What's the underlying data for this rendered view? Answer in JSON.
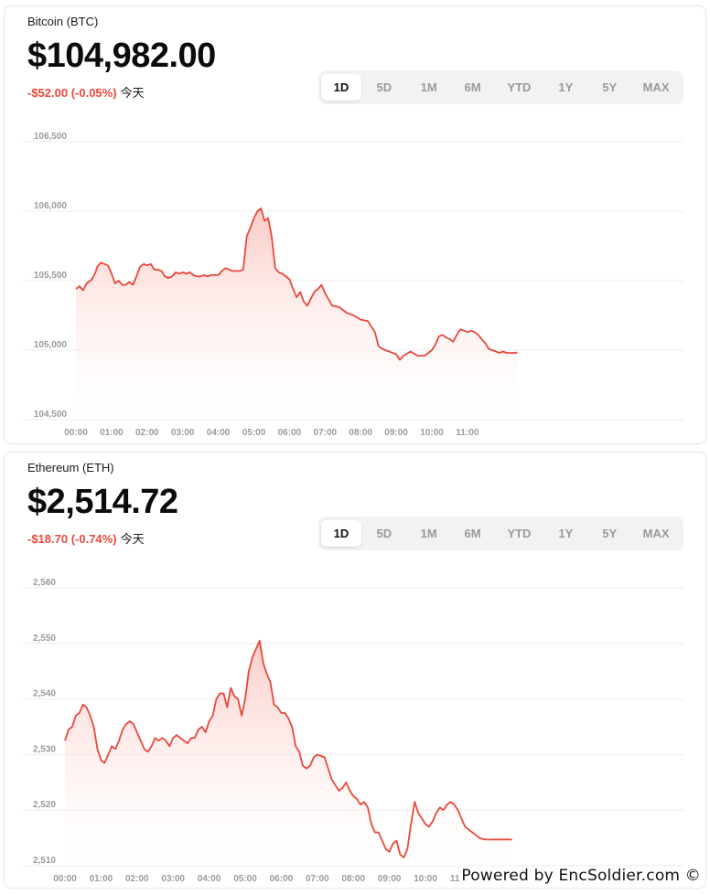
{
  "cards": [
    {
      "id": "btc",
      "asset_name": "Bitcoin (BTC)",
      "price": "$104,982.00",
      "change": "-$52.00 (-0.05%)",
      "period_label": "今天",
      "ranges": [
        "1D",
        "5D",
        "1M",
        "6M",
        "YTD",
        "1Y",
        "5Y",
        "MAX"
      ],
      "active_range": "1D",
      "colors": {
        "line": "#e8483b",
        "fill_top": "#fbc9c3",
        "grid": "#ececec"
      },
      "chart_data": {
        "type": "area",
        "y_ticks": [
          "106,500",
          "106,000",
          "105,500",
          "105,000",
          "104,500"
        ],
        "ylim": [
          104500,
          106500
        ],
        "x_ticks": [
          "00:00",
          "01:00",
          "02:00",
          "03:00",
          "04:00",
          "05:00",
          "06:00",
          "07:00",
          "08:00",
          "09:00",
          "10:00",
          "11:00"
        ],
        "x_unit": "hours since 00:00",
        "series": [
          {
            "x": [
              0,
              0.1,
              0.2,
              0.3,
              0.45,
              0.55,
              0.6,
              0.7,
              0.8,
              0.9,
              1.0,
              1.1,
              1.2,
              1.3,
              1.4,
              1.5,
              1.6,
              1.7,
              1.8,
              1.9,
              2.0,
              2.1,
              2.2,
              2.3,
              2.4,
              2.5,
              2.6,
              2.7,
              2.8,
              2.9,
              3.0,
              3.1,
              3.2,
              3.3,
              3.4,
              3.5,
              3.6,
              3.7,
              3.8,
              3.9,
              4.0,
              4.1,
              4.2,
              4.3,
              4.4,
              4.5,
              4.6,
              4.7,
              4.8,
              4.9,
              5.0,
              5.1,
              5.2,
              5.3,
              5.4,
              5.5,
              5.6,
              5.7,
              5.8,
              5.9,
              6.0,
              6.1,
              6.2,
              6.3,
              6.4,
              6.5,
              6.6,
              6.7,
              6.8,
              6.9,
              7.0,
              7.2,
              7.4,
              7.6,
              7.8,
              8.0,
              8.2,
              8.4,
              8.5,
              8.6,
              8.8,
              9.0,
              9.1,
              9.2,
              9.4,
              9.6,
              9.8,
              10.0,
              10.1,
              10.2,
              10.3,
              10.4,
              10.5,
              10.6,
              10.7,
              10.8,
              10.9,
              11.0,
              11.1,
              11.2,
              11.3,
              11.5,
              11.6,
              11.7,
              11.8,
              11.9,
              12.0,
              12.1,
              12.2,
              12.3,
              12.4
            ],
            "y": [
              105440,
              105460,
              105430,
              105480,
              105510,
              105560,
              105600,
              105630,
              105620,
              105610,
              105550,
              105480,
              105500,
              105470,
              105470,
              105490,
              105470,
              105530,
              105600,
              105620,
              105610,
              105620,
              105580,
              105580,
              105570,
              105530,
              105520,
              105530,
              105560,
              105550,
              105560,
              105550,
              105560,
              105540,
              105530,
              105530,
              105540,
              105530,
              105540,
              105540,
              105540,
              105570,
              105590,
              105580,
              105570,
              105570,
              105570,
              105580,
              105820,
              105880,
              105950,
              106000,
              106020,
              105930,
              105950,
              105820,
              105590,
              105560,
              105550,
              105530,
              105510,
              105440,
              105380,
              105420,
              105350,
              105320,
              105370,
              105420,
              105440,
              105470,
              105410,
              105320,
              105310,
              105270,
              105250,
              105220,
              105210,
              105130,
              105030,
              105010,
              104990,
              104970,
              104930,
              104960,
              104990,
              104960,
              104960,
              105000,
              105040,
              105100,
              105110,
              105090,
              105080,
              105060,
              105110,
              105150,
              105140,
              105130,
              105140,
              105130,
              105110,
              105050,
              105010,
              105000,
              104990,
              104980,
              104990,
              104980,
              104980,
              104980,
              104982
            ]
          }
        ]
      }
    },
    {
      "id": "eth",
      "asset_name": "Ethereum (ETH)",
      "price": "$2,514.72",
      "change": "-$18.70 (-0.74%)",
      "period_label": "今天",
      "ranges": [
        "1D",
        "5D",
        "1M",
        "6M",
        "YTD",
        "1Y",
        "5Y",
        "MAX"
      ],
      "active_range": "1D",
      "colors": {
        "line": "#e8483b",
        "fill_top": "#fbc9c3",
        "grid": "#ececec"
      },
      "chart_data": {
        "type": "area",
        "y_ticks": [
          "2,560",
          "2,550",
          "2,540",
          "2,530",
          "2,520",
          "2,510"
        ],
        "ylim": [
          2510,
          2560
        ],
        "x_ticks": [
          "00:00",
          "01:00",
          "02:00",
          "03:00",
          "04:00",
          "05:00",
          "06:00",
          "07:00",
          "08:00",
          "09:00",
          "10:00",
          "11:00"
        ],
        "x_unit": "hours since 00:00",
        "series": [
          {
            "x": [
              0,
              0.1,
              0.2,
              0.3,
              0.4,
              0.5,
              0.6,
              0.7,
              0.8,
              0.9,
              1.0,
              1.1,
              1.2,
              1.3,
              1.4,
              1.5,
              1.6,
              1.7,
              1.8,
              1.9,
              2.0,
              2.1,
              2.2,
              2.3,
              2.4,
              2.5,
              2.6,
              2.7,
              2.8,
              2.9,
              3.0,
              3.1,
              3.2,
              3.3,
              3.4,
              3.5,
              3.6,
              3.7,
              3.8,
              3.9,
              4.0,
              4.1,
              4.2,
              4.3,
              4.4,
              4.5,
              4.6,
              4.7,
              4.8,
              4.9,
              5.0,
              5.1,
              5.2,
              5.3,
              5.4,
              5.5,
              5.6,
              5.7,
              5.8,
              5.9,
              6.0,
              6.1,
              6.2,
              6.3,
              6.4,
              6.5,
              6.6,
              6.7,
              6.8,
              6.9,
              7.0,
              7.2,
              7.4,
              7.6,
              7.7,
              7.8,
              7.9,
              8.0,
              8.1,
              8.2,
              8.3,
              8.4,
              8.5,
              8.6,
              8.7,
              8.8,
              8.9,
              9.0,
              9.1,
              9.2,
              9.3,
              9.4,
              9.5,
              9.6,
              9.7,
              9.8,
              9.9,
              10.0,
              10.1,
              10.2,
              10.3,
              10.4,
              10.5,
              10.6,
              10.7,
              10.8,
              10.9,
              11.0,
              11.1,
              11.2,
              11.3,
              11.4,
              11.5,
              11.6,
              11.7,
              11.8,
              11.9,
              12.0,
              12.1,
              12.2,
              12.3,
              12.4
            ],
            "y": [
              2532.5,
              2534.5,
              2535.0,
              2537.0,
              2537.5,
              2539.0,
              2538.5,
              2537.0,
              2535.0,
              2531.0,
              2529.0,
              2528.5,
              2530.0,
              2531.5,
              2531.0,
              2532.5,
              2534.5,
              2535.5,
              2536.0,
              2535.5,
              2534.0,
              2532.5,
              2531.0,
              2530.5,
              2531.5,
              2533.0,
              2532.5,
              2533.0,
              2532.5,
              2531.5,
              2533.0,
              2533.5,
              2533.0,
              2532.5,
              2532.0,
              2533.0,
              2533.0,
              2534.5,
              2535.0,
              2534.0,
              2536.0,
              2537.0,
              2540.0,
              2541.0,
              2541.0,
              2538.5,
              2542.0,
              2540.5,
              2540.0,
              2537.0,
              2540.0,
              2545.0,
              2547.5,
              2549.0,
              2550.5,
              2546.5,
              2544.5,
              2543.0,
              2539.0,
              2538.5,
              2537.5,
              2537.5,
              2536.5,
              2535.0,
              2531.5,
              2530.5,
              2528.0,
              2527.5,
              2528.0,
              2529.5,
              2530.0,
              2529.5,
              2525.5,
              2523.5,
              2524.0,
              2525.0,
              2523.5,
              2522.5,
              2522.0,
              2521.0,
              2521.5,
              2520.5,
              2517.5,
              2516.0,
              2516.0,
              2514.5,
              2513.0,
              2512.5,
              2514.0,
              2514.5,
              2512.0,
              2511.5,
              2513.0,
              2517.5,
              2521.5,
              2519.5,
              2518.5,
              2517.5,
              2517.0,
              2518.0,
              2519.5,
              2520.5,
              2520.0,
              2521.0,
              2521.5,
              2521.0,
              2520.0,
              2518.5,
              2517.0,
              2516.5,
              2516.0,
              2515.5,
              2515.0,
              2514.8,
              2514.7,
              2514.7,
              2514.72,
              2514.72,
              2514.72,
              2514.72,
              2514.72,
              2514.72
            ]
          }
        ]
      }
    }
  ],
  "footer": {
    "powered_by": "Powered by EncSoldier.com ©"
  }
}
